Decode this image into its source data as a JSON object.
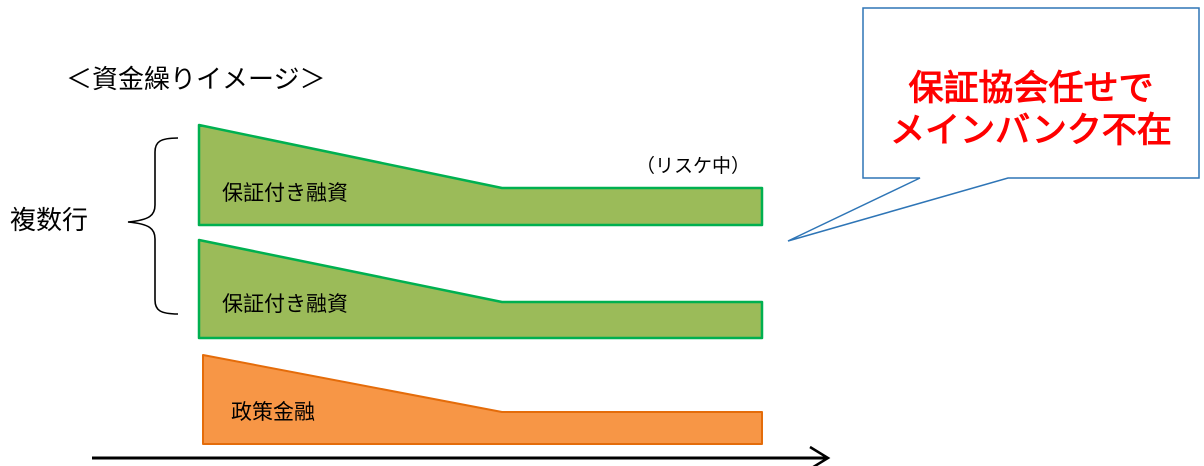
{
  "title": "＜資金繰りイメージ＞",
  "group_label": "複数行",
  "status_note": "（リスケ中）",
  "loans": [
    {
      "label": "保証付き融資",
      "color": "#9bbb59",
      "stroke": "#00b050"
    },
    {
      "label": "保証付き融資",
      "color": "#9bbb59",
      "stroke": "#00b050"
    },
    {
      "label": "政策金融",
      "color": "#f79646",
      "stroke": "#e46c0a"
    }
  ],
  "callout": {
    "line1": "保証協会任せで",
    "line2": "メインバンク不在",
    "text_color": "#ff0000",
    "border_color": "#2e75b6"
  },
  "axis_color": "#000000"
}
